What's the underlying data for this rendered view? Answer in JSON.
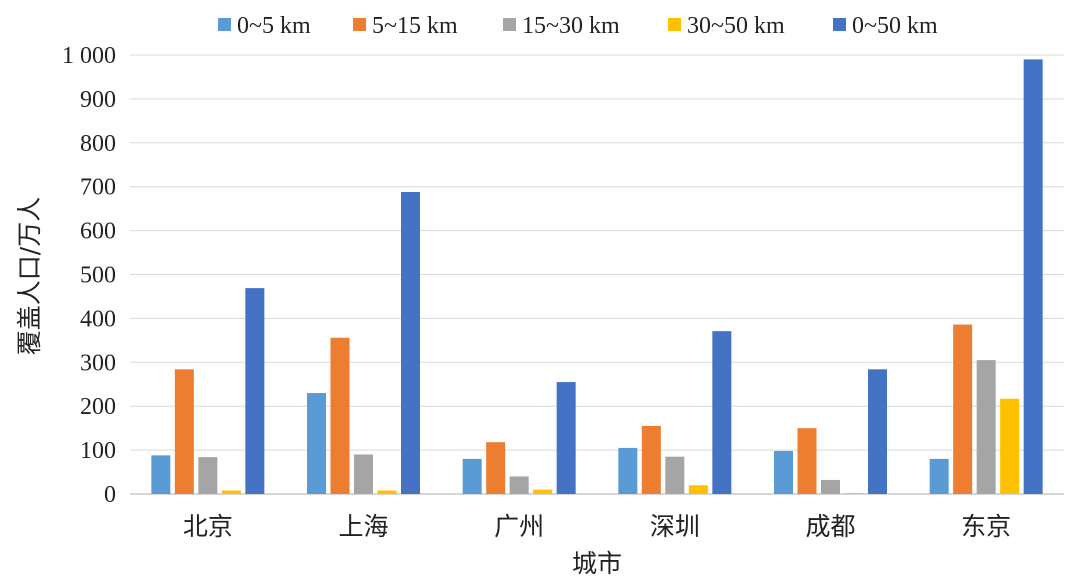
{
  "chart_data": {
    "type": "bar",
    "categories": [
      "北京",
      "上海",
      "广州",
      "深圳",
      "成都",
      "东京"
    ],
    "series": [
      {
        "name": "0~5 km",
        "color": "#5b9bd5",
        "values": [
          88,
          230,
          80,
          105,
          98,
          80
        ]
      },
      {
        "name": "5~15 km",
        "color": "#ed7d31",
        "values": [
          284,
          356,
          118,
          155,
          150,
          386
        ]
      },
      {
        "name": "15~30 km",
        "color": "#a5a5a5",
        "values": [
          84,
          90,
          40,
          85,
          32,
          305
        ]
      },
      {
        "name": "30~50 km",
        "color": "#ffc000",
        "values": [
          8,
          8,
          10,
          20,
          2,
          217
        ]
      },
      {
        "name": "0~50 km",
        "color": "#4472c4",
        "values": [
          469,
          688,
          255,
          371,
          284,
          990
        ]
      }
    ],
    "ylim": [
      0,
      1000
    ],
    "yticks": [
      0,
      100,
      200,
      300,
      400,
      500,
      600,
      700,
      800,
      900,
      1000
    ],
    "ytick_labels": [
      "0",
      "100",
      "200",
      "300",
      "400",
      "500",
      "600",
      "700",
      "800",
      "900",
      "1 000"
    ],
    "xlabel": "城市",
    "ylabel": "覆盖人口/万人",
    "legend_position": "top",
    "grid": true
  }
}
